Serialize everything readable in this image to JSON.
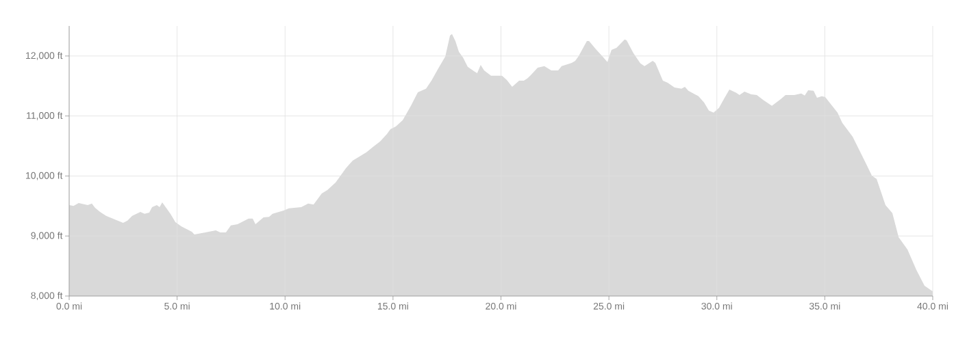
{
  "chart_data": {
    "type": "area",
    "color": "#d9d9d9",
    "x": [
      0.0,
      0.2,
      0.44,
      0.86,
      1.05,
      1.2,
      1.43,
      1.71,
      2.19,
      2.5,
      2.7,
      2.92,
      3.3,
      3.49,
      3.71,
      3.84,
      4.06,
      4.19,
      4.31,
      4.69,
      4.92,
      5.2,
      5.68,
      5.8,
      6.31,
      6.79,
      7.0,
      7.26,
      7.49,
      7.8,
      8.31,
      8.5,
      8.63,
      9.0,
      9.26,
      9.42,
      9.93,
      10.18,
      10.75,
      11.07,
      11.32,
      11.7,
      11.96,
      12.34,
      12.82,
      13.13,
      13.77,
      14.08,
      14.4,
      14.72,
      14.88,
      15.13,
      15.45,
      15.83,
      16.15,
      16.53,
      16.78,
      17.1,
      17.42,
      17.64,
      17.73,
      17.89,
      18.05,
      18.24,
      18.46,
      18.78,
      18.9,
      19.06,
      19.22,
      19.54,
      19.73,
      20.05,
      20.27,
      20.52,
      20.84,
      21.06,
      21.22,
      21.38,
      21.7,
      22.01,
      22.33,
      22.65,
      22.81,
      23.28,
      23.44,
      23.6,
      23.98,
      24.08,
      24.39,
      24.71,
      24.93,
      25.12,
      25.35,
      25.73,
      25.82,
      26.14,
      26.46,
      26.65,
      27.03,
      27.15,
      27.5,
      27.72,
      28.04,
      28.36,
      28.52,
      28.68,
      29.15,
      29.41,
      29.63,
      29.85,
      30.1,
      30.36,
      30.58,
      30.9,
      31.05,
      31.28,
      31.59,
      31.85,
      32.17,
      32.55,
      32.96,
      33.18,
      33.59,
      33.91,
      34.07,
      34.23,
      34.48,
      34.64,
      34.86,
      35.02,
      35.27,
      35.59,
      35.81,
      36.29,
      36.92,
      37.18,
      37.4,
      37.81,
      38.13,
      38.42,
      38.83,
      39.24,
      39.62,
      39.94,
      40.0
    ],
    "values": [
      9515,
      9500,
      9550,
      9515,
      9540,
      9470,
      9400,
      9335,
      9265,
      9220,
      9255,
      9335,
      9400,
      9370,
      9390,
      9480,
      9515,
      9480,
      9560,
      9370,
      9230,
      9160,
      9070,
      9025,
      9060,
      9095,
      9060,
      9060,
      9175,
      9195,
      9290,
      9290,
      9195,
      9310,
      9320,
      9370,
      9425,
      9460,
      9480,
      9540,
      9525,
      9710,
      9765,
      9890,
      10130,
      10255,
      10395,
      10485,
      10575,
      10700,
      10780,
      10825,
      10930,
      11170,
      11395,
      11455,
      11590,
      11795,
      11990,
      12340,
      12365,
      12250,
      12070,
      11975,
      11820,
      11740,
      11715,
      11850,
      11760,
      11670,
      11670,
      11670,
      11600,
      11485,
      11590,
      11590,
      11625,
      11680,
      11805,
      11830,
      11760,
      11760,
      11830,
      11885,
      11920,
      12000,
      12250,
      12250,
      12115,
      11990,
      11900,
      12100,
      12135,
      12275,
      12260,
      12045,
      11875,
      11830,
      11920,
      11885,
      11590,
      11555,
      11475,
      11455,
      11485,
      11420,
      11330,
      11225,
      11090,
      11055,
      11135,
      11305,
      11440,
      11385,
      11350,
      11405,
      11360,
      11350,
      11260,
      11170,
      11280,
      11350,
      11350,
      11375,
      11340,
      11430,
      11420,
      11305,
      11330,
      11315,
      11200,
      11055,
      10885,
      10655,
      10200,
      10005,
      9950,
      9515,
      9380,
      8980,
      8775,
      8435,
      8170,
      8090,
      8080
    ],
    "xlim": [
      0,
      40
    ],
    "ylim": [
      8000,
      12500
    ],
    "xticks": [
      {
        "value": 0,
        "label": "0.0 mi"
      },
      {
        "value": 5,
        "label": "5.0 mi"
      },
      {
        "value": 10,
        "label": "10.0 mi"
      },
      {
        "value": 15,
        "label": "15.0 mi"
      },
      {
        "value": 20,
        "label": "20.0 mi"
      },
      {
        "value": 25,
        "label": "25.0 mi"
      },
      {
        "value": 30,
        "label": "30.0 mi"
      },
      {
        "value": 35,
        "label": "35.0 mi"
      },
      {
        "value": 40,
        "label": "40.0 mi"
      }
    ],
    "yticks": [
      {
        "value": 8000,
        "label": "8,000 ft"
      },
      {
        "value": 9000,
        "label": "9,000 ft"
      },
      {
        "value": 10000,
        "label": "10,000 ft"
      },
      {
        "value": 11000,
        "label": "11,000 ft"
      },
      {
        "value": 12000,
        "label": "12,000 ft"
      }
    ],
    "grid": true
  }
}
